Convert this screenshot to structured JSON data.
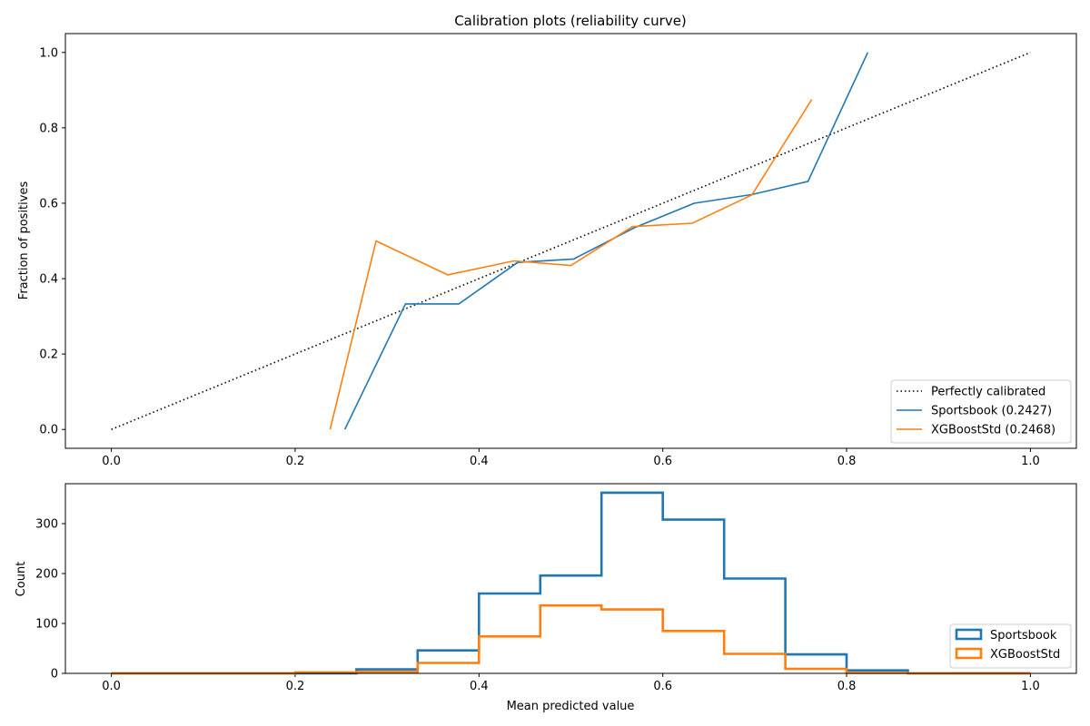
{
  "chart_data": [
    {
      "type": "line",
      "title": "Calibration plots  (reliability curve)",
      "xlabel": "",
      "ylabel": "Fraction of positives",
      "xlim": [
        -0.05,
        1.05
      ],
      "ylim": [
        -0.05,
        1.05
      ],
      "xticks": [
        "0.0",
        "0.2",
        "0.4",
        "0.6",
        "0.8",
        "1.0"
      ],
      "yticks": [
        "0.0",
        "0.2",
        "0.4",
        "0.6",
        "0.8",
        "1.0"
      ],
      "legend_position": "lower right",
      "series": [
        {
          "name": "Perfectly calibrated",
          "color": "#000000",
          "style": "dotted",
          "x": [
            0.0,
            1.0
          ],
          "y": [
            0.0,
            1.0
          ]
        },
        {
          "name": "Sportsbook (0.2427)",
          "color": "#1f77b4",
          "style": "solid",
          "x": [
            0.254,
            0.32,
            0.378,
            0.442,
            0.503,
            0.569,
            0.634,
            0.697,
            0.758,
            0.823
          ],
          "y": [
            0.0,
            0.333,
            0.333,
            0.443,
            0.452,
            0.535,
            0.6,
            0.623,
            0.658,
            1.0
          ]
        },
        {
          "name": "XGBoostStd (0.2468)",
          "color": "#ff7f0e",
          "style": "solid",
          "x": [
            0.238,
            0.288,
            0.366,
            0.438,
            0.5,
            0.567,
            0.632,
            0.697,
            0.762
          ],
          "y": [
            0.0,
            0.5,
            0.41,
            0.447,
            0.435,
            0.538,
            0.547,
            0.622,
            0.875
          ]
        }
      ]
    },
    {
      "type": "histogram",
      "xlabel": "Mean predicted value",
      "ylabel": "Count",
      "xlim": [
        -0.05,
        1.05
      ],
      "ylim": [
        0,
        380
      ],
      "xticks": [
        "0.0",
        "0.2",
        "0.4",
        "0.6",
        "0.8",
        "1.0"
      ],
      "yticks": [
        "0",
        "100",
        "200",
        "300"
      ],
      "legend_position": "lower right",
      "bin_edges": [
        0.0,
        0.0667,
        0.1333,
        0.2,
        0.2667,
        0.3333,
        0.4,
        0.4667,
        0.5333,
        0.6,
        0.6667,
        0.7333,
        0.8,
        0.8667,
        0.9333,
        1.0
      ],
      "series": [
        {
          "name": "Sportsbook",
          "color": "#1f77b4",
          "counts": [
            0,
            0,
            0,
            0,
            8,
            46,
            160,
            196,
            362,
            308,
            190,
            38,
            6,
            0,
            0
          ]
        },
        {
          "name": "XGBoostStd",
          "color": "#ff7f0e",
          "counts": [
            0,
            0,
            0,
            2,
            3,
            21,
            74,
            136,
            128,
            85,
            39,
            9,
            1,
            0,
            0
          ]
        }
      ]
    }
  ]
}
